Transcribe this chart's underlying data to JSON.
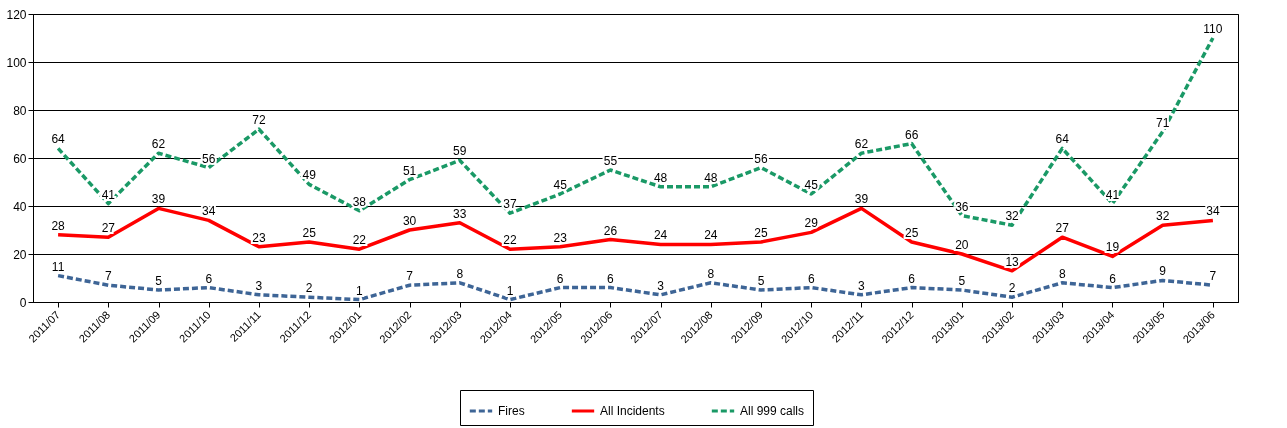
{
  "chart_data": {
    "type": "line",
    "categories": [
      "2011/07",
      "2011/08",
      "2011/09",
      "2011/10",
      "2011/11",
      "2011/12",
      "2012/01",
      "2012/02",
      "2012/03",
      "2012/04",
      "2012/05",
      "2012/06",
      "2012/07",
      "2012/08",
      "2012/09",
      "2012/10",
      "2012/11",
      "2012/12",
      "2013/01",
      "2013/02",
      "2013/03",
      "2013/04",
      "2013/05",
      "2013/06"
    ],
    "series": [
      {
        "name": "Fires",
        "color": "#3e6596",
        "line_style": "dashed",
        "values": [
          11,
          7,
          5,
          6,
          3,
          2,
          1,
          7,
          8,
          1,
          6,
          6,
          3,
          8,
          5,
          6,
          3,
          6,
          5,
          2,
          8,
          6,
          9,
          7
        ]
      },
      {
        "name": "All Incidents",
        "color": "#ff0000",
        "line_style": "solid",
        "values": [
          28,
          27,
          39,
          34,
          23,
          25,
          22,
          30,
          33,
          22,
          23,
          26,
          24,
          24,
          25,
          29,
          39,
          25,
          20,
          13,
          27,
          19,
          32,
          34
        ]
      },
      {
        "name": "All 999 calls",
        "color": "#1a9966",
        "line_style": "dashed",
        "values": [
          64,
          41,
          62,
          56,
          72,
          49,
          38,
          51,
          59,
          37,
          45,
          55,
          48,
          48,
          56,
          45,
          62,
          66,
          36,
          32,
          64,
          41,
          71,
          110
        ]
      }
    ],
    "ylim": [
      0,
      120
    ],
    "yticks": [
      0,
      20,
      40,
      60,
      80,
      100,
      120
    ],
    "grid": "y",
    "legend": "bottom",
    "data_labels": true,
    "marker": "none"
  }
}
